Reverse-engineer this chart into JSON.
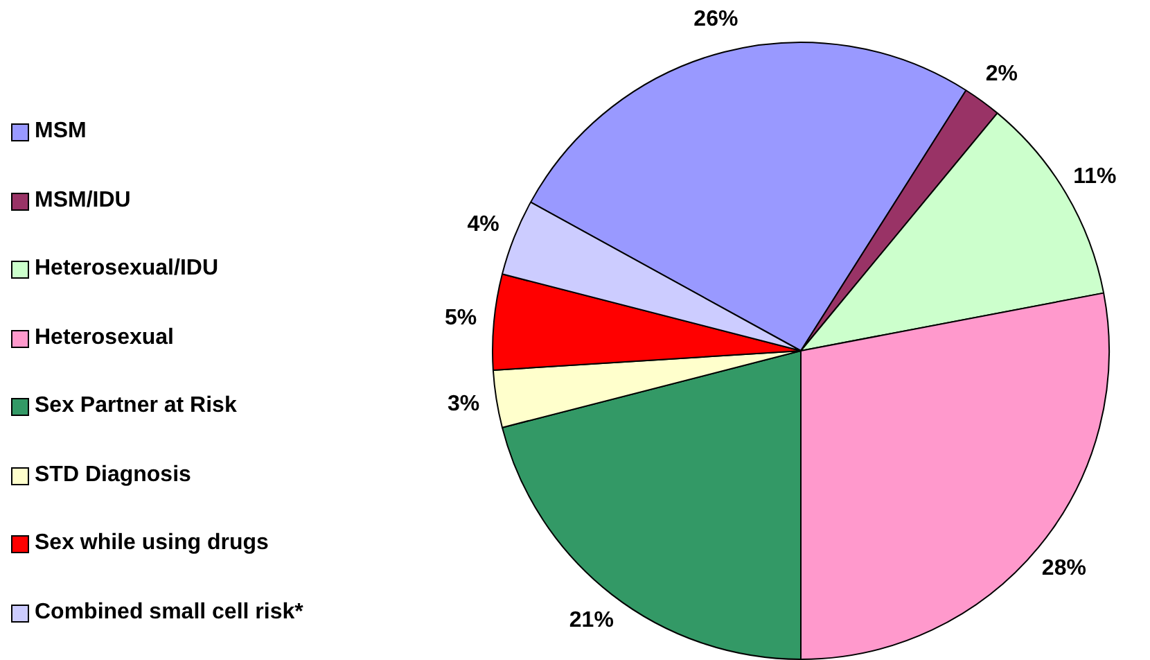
{
  "chart_data": {
    "type": "pie",
    "categories": [
      "MSM",
      "MSM/IDU",
      "Heterosexual/IDU",
      "Heterosexual",
      "Sex Partner at Risk",
      "STD Diagnosis",
      "Sex while using drugs",
      "Combined small cell risk*"
    ],
    "values": [
      26,
      2,
      11,
      28,
      21,
      3,
      5,
      4
    ],
    "colors": [
      "#9999ff",
      "#993366",
      "#ccffcc",
      "#ff99cc",
      "#339966",
      "#ffffcc",
      "#ff0000",
      "#ccccff"
    ],
    "value_labels": [
      "26%",
      "2%",
      "11%",
      "28%",
      "21%",
      "3%",
      "5%",
      "4%"
    ],
    "legend": "left"
  }
}
